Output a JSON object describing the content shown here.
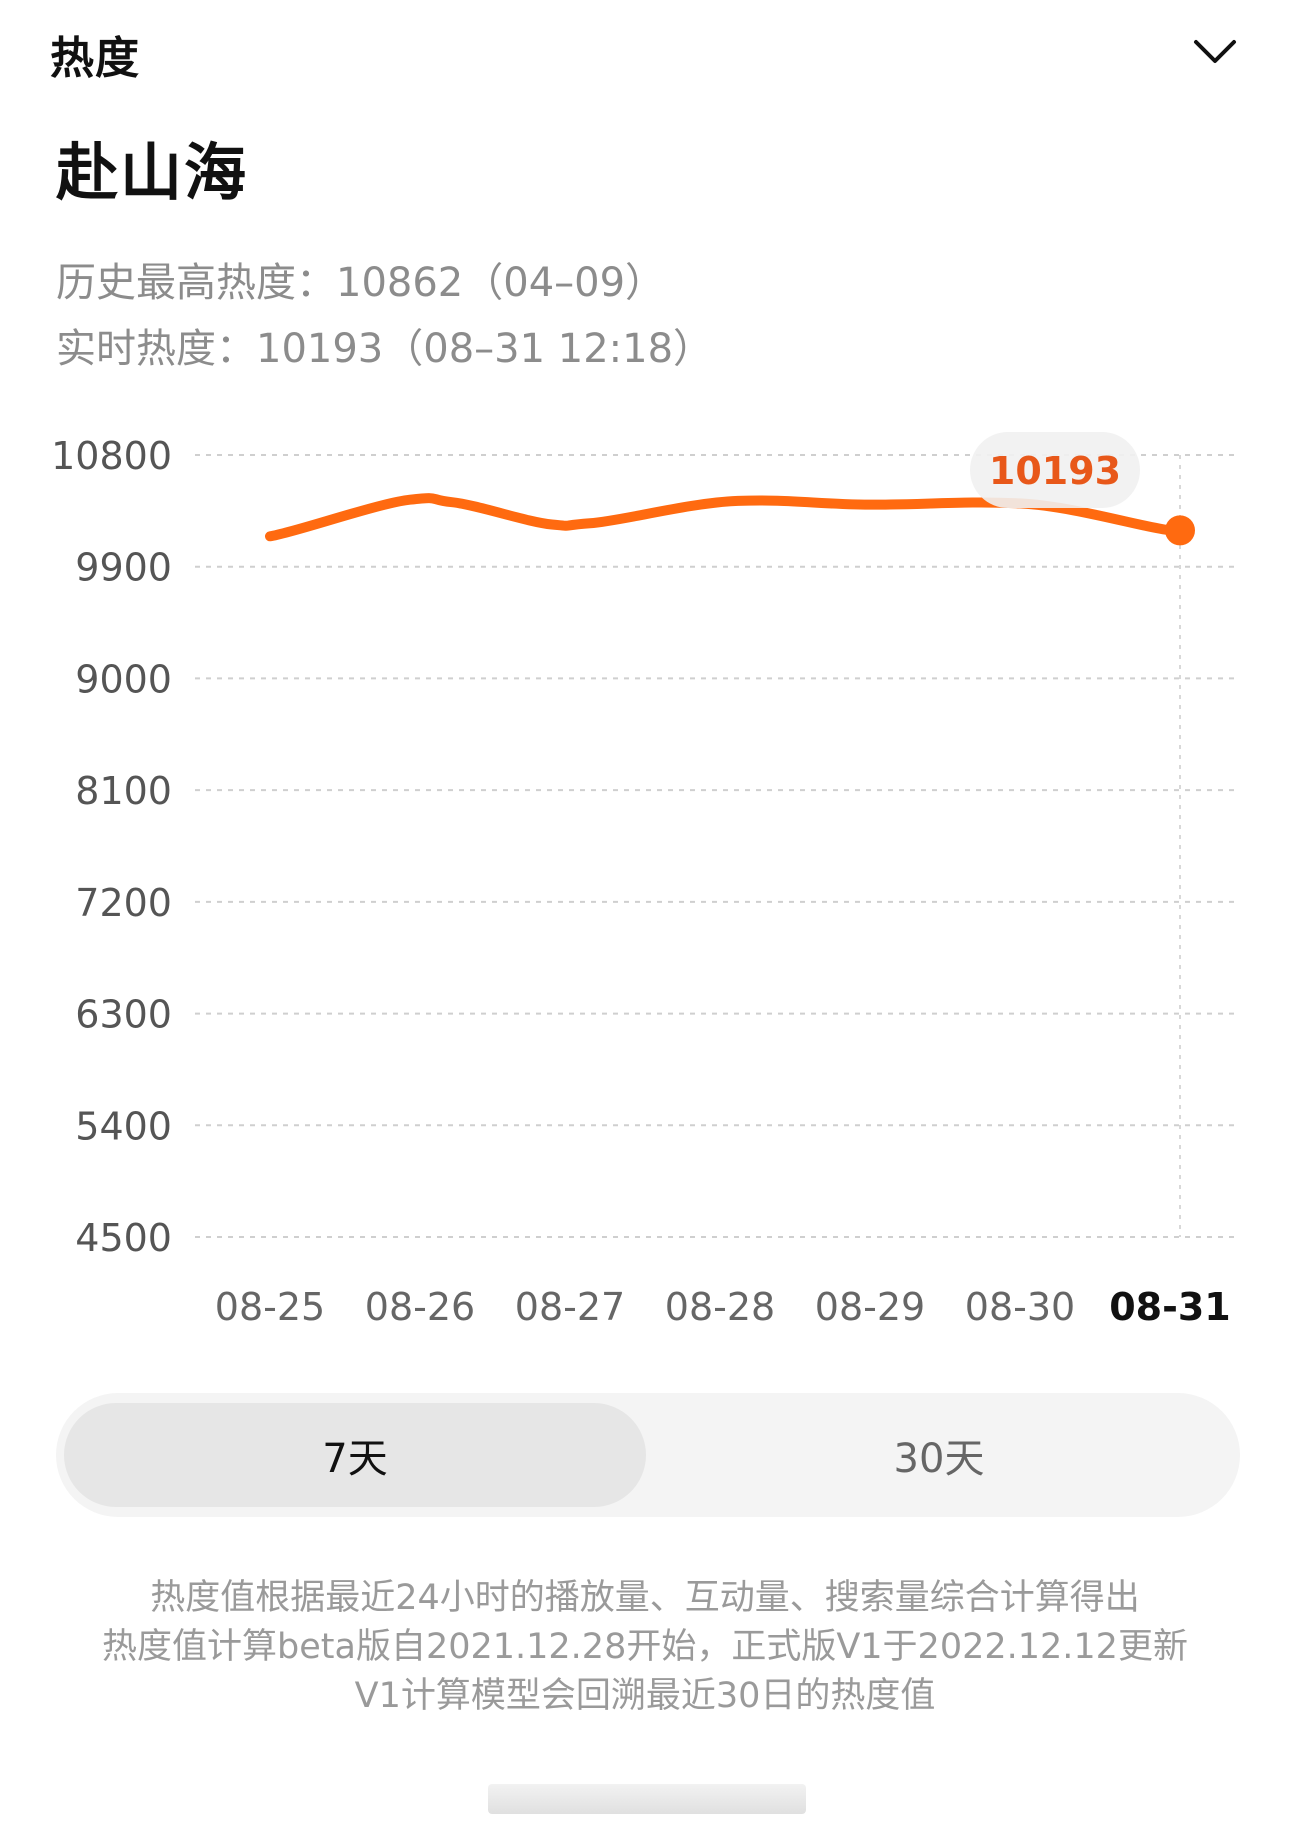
{
  "header": {
    "title": "热度",
    "collapse_icon": "chevron-down-icon"
  },
  "topic": {
    "title": "赴山海"
  },
  "stats": {
    "peak_label": "历史最高热度：",
    "peak_value": "10862（04–09）",
    "live_label": "实时热度：",
    "live_value": "10193（08–31 12:18）"
  },
  "chart_data": {
    "type": "line",
    "title": "",
    "xlabel": "",
    "ylabel": "",
    "categories": [
      "08-25",
      "08-26",
      "08-27",
      "08-28",
      "08-29",
      "08-30",
      "08-31"
    ],
    "y_ticks": [
      "10800",
      "9900",
      "9000",
      "8100",
      "7200",
      "6300",
      "5400",
      "4500"
    ],
    "ylim": [
      4500,
      10800
    ],
    "grid": true,
    "legend": "none",
    "points": [
      {
        "x": "08-25",
        "y": 10145
      },
      {
        "x": "08-26",
        "y": 10440
      },
      {
        "x": "08-26",
        "y": 10420
      },
      {
        "x": "08-27",
        "y": 10240
      },
      {
        "x": "08-27",
        "y": 10250
      },
      {
        "x": "08-28",
        "y": 10430
      },
      {
        "x": "08-29",
        "y": 10400
      },
      {
        "x": "08-30",
        "y": 10410
      },
      {
        "x": "08-31",
        "y": 10193
      }
    ],
    "highlight": {
      "x": "08-31",
      "y": 10193,
      "label": "10193"
    },
    "line_color": "#ff6a10",
    "highlight_label_color": "#e8581a",
    "highlight_bubble_color": "#f1f1f1",
    "grid_color": "#cfcfcf"
  },
  "range_tabs": {
    "seven_days": "7天",
    "thirty_days": "30天",
    "selected": "7天"
  },
  "notes": {
    "line1": "热度值根据最近24小时的播放量、互动量、搜索量综合计算得出",
    "line2": "热度值计算beta版自2021.12.28开始，正式版V1于2022.12.12更新",
    "line3": "V1计算模型会回溯最近30日的热度值"
  }
}
